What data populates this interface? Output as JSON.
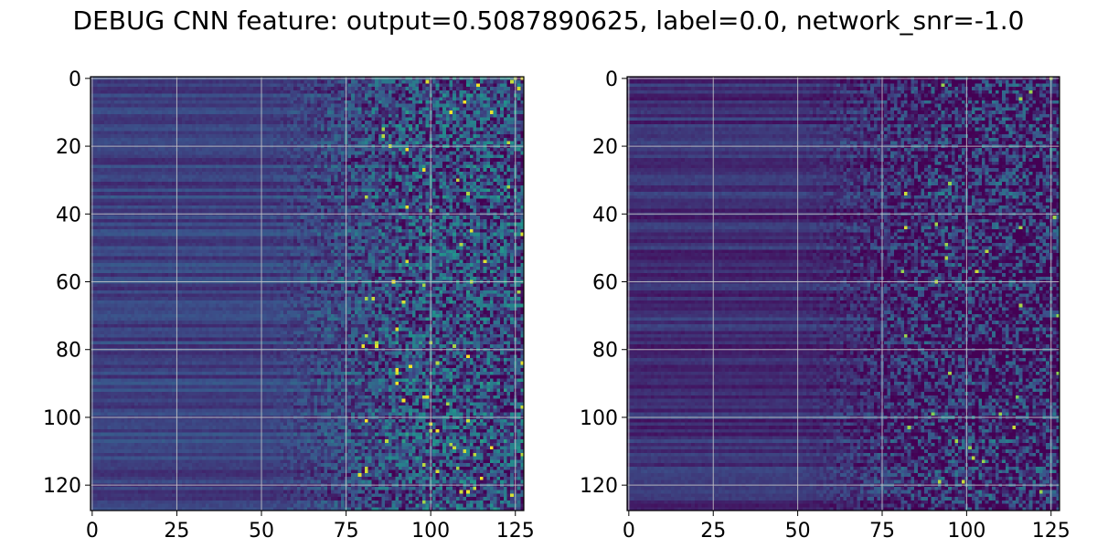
{
  "title": "DEBUG CNN feature: output=0.5087890625, label=0.0, network_snr=-1.0",
  "colormap": [
    "#440154",
    "#3b528b",
    "#21918c",
    "#5ec962",
    "#fde725"
  ],
  "chart_data": [
    {
      "type": "heatmap",
      "rows": 128,
      "cols": 128,
      "grid": true,
      "xlim": [
        -0.5,
        127.5
      ],
      "ylim": [
        127.5,
        -0.5
      ],
      "xticks": [
        0,
        25,
        50,
        75,
        100,
        125
      ],
      "yticks": [
        0,
        20,
        40,
        60,
        80,
        100,
        120
      ],
      "xtick_labels": [
        "0",
        "25",
        "50",
        "75",
        "100",
        "125"
      ],
      "ytick_labels": [
        "0",
        "20",
        "40",
        "60",
        "80",
        "100",
        "120"
      ],
      "columns_trend": "smooth dark-blue horizontal row stripes for columns 0-50, increasingly noisy teal/green speckle from column ~70 to 127 with scattered yellow maxima"
    },
    {
      "type": "heatmap",
      "rows": 128,
      "cols": 128,
      "grid": true,
      "xlim": [
        -0.5,
        127.5
      ],
      "ylim": [
        127.5,
        -0.5
      ],
      "xticks": [
        0,
        25,
        50,
        75,
        100,
        125
      ],
      "yticks": [
        0,
        20,
        40,
        60,
        80,
        100,
        120
      ],
      "xtick_labels": [
        "0",
        "25",
        "50",
        "75",
        "100",
        "125"
      ],
      "ytick_labels": [
        "0",
        "20",
        "40",
        "60",
        "80",
        "100",
        "120"
      ],
      "columns_trend": "darker overall; smooth purple/blue row stripes for columns 0-55, noisy purple/teal speckle from column ~75 to 127 with few yellow maxima"
    }
  ]
}
